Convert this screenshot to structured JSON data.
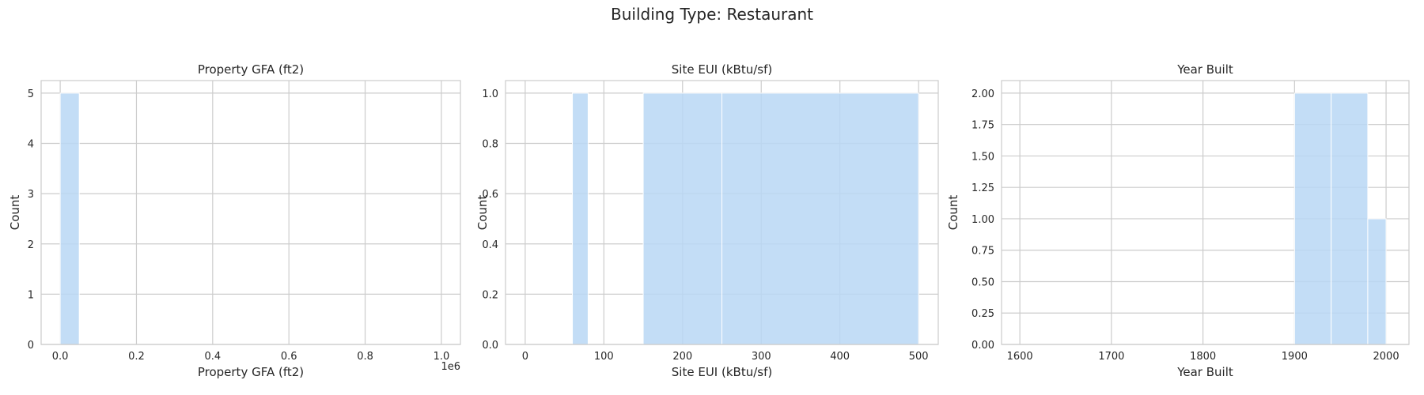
{
  "suptitle": "Building Type: Restaurant",
  "colors": {
    "bar": "#b9d7f4",
    "grid": "#cccccc",
    "text": "#262626"
  },
  "chart_data": [
    {
      "type": "bar",
      "title": "Property GFA (ft2)",
      "xlabel": "Property GFA (ft2)",
      "ylabel": "Count",
      "offset_text": "1e6",
      "xlim": [
        -50000,
        1050000
      ],
      "ylim": [
        0,
        5.25
      ],
      "xticks": [
        0,
        200000,
        400000,
        600000,
        800000,
        1000000
      ],
      "xtick_labels": [
        "0.0",
        "0.2",
        "0.4",
        "0.6",
        "0.8",
        "1.0"
      ],
      "yticks": [
        0,
        1,
        2,
        3,
        4,
        5
      ],
      "ytick_labels": [
        "0",
        "1",
        "2",
        "3",
        "4",
        "5"
      ],
      "bins": [
        {
          "x0": 0,
          "x1": 50000,
          "count": 5
        }
      ],
      "grid": true
    },
    {
      "type": "bar",
      "title": "Site EUI (kBtu/sf)",
      "xlabel": "Site EUI (kBtu/sf)",
      "ylabel": "Count",
      "xlim": [
        -25,
        525
      ],
      "ylim": [
        0,
        1.05
      ],
      "xticks": [
        0,
        100,
        200,
        300,
        400,
        500
      ],
      "xtick_labels": [
        "0",
        "100",
        "200",
        "300",
        "400",
        "500"
      ],
      "yticks": [
        0,
        0.2,
        0.4,
        0.6,
        0.8,
        1.0
      ],
      "ytick_labels": [
        "0.0",
        "0.2",
        "0.4",
        "0.6",
        "0.8",
        "1.0"
      ],
      "bins": [
        {
          "x0": 60,
          "x1": 80,
          "count": 1
        },
        {
          "x0": 150,
          "x1": 250,
          "count": 1
        },
        {
          "x0": 250,
          "x1": 500,
          "count": 1
        }
      ],
      "grid": true
    },
    {
      "type": "bar",
      "title": "Year Built",
      "xlabel": "Year Built",
      "ylabel": "Count",
      "xlim": [
        1580,
        2025
      ],
      "ylim": [
        0,
        2.1
      ],
      "xticks": [
        1600,
        1700,
        1800,
        1900,
        2000
      ],
      "xtick_labels": [
        "1600",
        "1700",
        "1800",
        "1900",
        "2000"
      ],
      "yticks": [
        0,
        0.25,
        0.5,
        0.75,
        1.0,
        1.25,
        1.5,
        1.75,
        2.0
      ],
      "ytick_labels": [
        "0.00",
        "0.25",
        "0.50",
        "0.75",
        "1.00",
        "1.25",
        "1.50",
        "1.75",
        "2.00"
      ],
      "bins": [
        {
          "x0": 1900,
          "x1": 1940,
          "count": 2
        },
        {
          "x0": 1940,
          "x1": 1980,
          "count": 2
        },
        {
          "x0": 1980,
          "x1": 2000,
          "count": 1
        }
      ],
      "grid": true
    }
  ]
}
